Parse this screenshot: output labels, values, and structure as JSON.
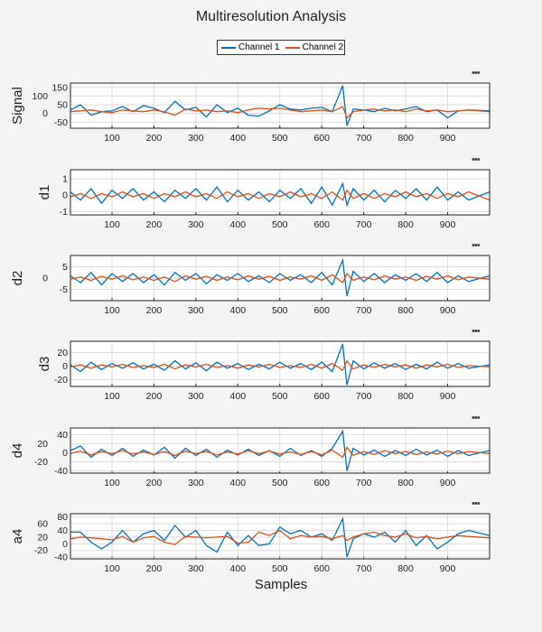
{
  "title": "Multiresolution Analysis",
  "xlabel": "Samples",
  "legend": [
    {
      "name": "Channel 1",
      "color": "#0072bd"
    },
    {
      "name": "Channel 2",
      "color": "#d95319"
    }
  ],
  "toolbar_icon": "more-options-icon",
  "chart_data": [
    {
      "type": "line",
      "ylabel": "Signal",
      "xlim": [
        1,
        1000
      ],
      "ylim": [
        -85,
        175
      ],
      "yticks": [
        -50,
        0,
        50,
        100,
        150
      ],
      "xticks": [
        100,
        200,
        300,
        400,
        500,
        600,
        700,
        800,
        900
      ],
      "grid": true,
      "x": [
        1,
        25,
        50,
        75,
        100,
        125,
        150,
        175,
        200,
        225,
        250,
        275,
        300,
        325,
        350,
        375,
        400,
        425,
        450,
        475,
        500,
        525,
        550,
        575,
        600,
        625,
        650,
        660,
        675,
        700,
        725,
        750,
        775,
        800,
        825,
        850,
        875,
        900,
        925,
        950,
        1000
      ],
      "series": [
        {
          "name": "Channel 1",
          "values": [
            20,
            50,
            -10,
            10,
            15,
            40,
            10,
            45,
            30,
            5,
            70,
            20,
            35,
            -20,
            50,
            5,
            30,
            -10,
            -15,
            15,
            50,
            25,
            20,
            30,
            35,
            10,
            160,
            -70,
            25,
            20,
            10,
            30,
            15,
            25,
            40,
            10,
            20,
            -25,
            15,
            20,
            15
          ]
        },
        {
          "name": "Channel 2",
          "values": [
            10,
            15,
            20,
            10,
            5,
            20,
            15,
            10,
            20,
            10,
            -10,
            25,
            15,
            20,
            10,
            15,
            5,
            20,
            30,
            25,
            30,
            20,
            10,
            15,
            20,
            10,
            40,
            -25,
            10,
            20,
            25,
            15,
            20,
            10,
            25,
            15,
            20,
            10,
            15,
            20,
            10
          ]
        }
      ]
    },
    {
      "type": "line",
      "ylabel": "d1",
      "xlim": [
        1,
        1000
      ],
      "ylim": [
        -1.2,
        1.55
      ],
      "yticks": [
        -1,
        0,
        1
      ],
      "xticks": [
        100,
        200,
        300,
        400,
        500,
        600,
        700,
        800,
        900
      ],
      "grid": true,
      "x": [
        1,
        25,
        50,
        75,
        100,
        125,
        150,
        175,
        200,
        225,
        250,
        275,
        300,
        325,
        350,
        375,
        400,
        425,
        450,
        475,
        500,
        525,
        550,
        575,
        600,
        625,
        650,
        660,
        675,
        700,
        725,
        750,
        775,
        800,
        825,
        850,
        875,
        900,
        925,
        950,
        1000
      ],
      "series": [
        {
          "name": "Channel 1",
          "values": [
            0.2,
            -0.3,
            0.4,
            -0.5,
            0.3,
            -0.2,
            0.4,
            -0.3,
            0.2,
            -0.4,
            0.3,
            -0.2,
            0.4,
            -0.3,
            0.5,
            -0.4,
            0.3,
            -0.3,
            0.2,
            -0.4,
            0.3,
            -0.2,
            0.4,
            -0.5,
            0.5,
            -0.6,
            0.7,
            -0.6,
            0.4,
            -0.3,
            0.3,
            -0.4,
            0.3,
            -0.2,
            0.4,
            -0.3,
            0.5,
            -0.3,
            0.2,
            -0.3,
            0.2
          ]
        },
        {
          "name": "Channel 2",
          "values": [
            -0.1,
            0.1,
            -0.2,
            0.1,
            -0.1,
            0.2,
            -0.1,
            0.1,
            -0.2,
            0.1,
            -0.1,
            0.2,
            -0.1,
            0.1,
            -0.2,
            0.2,
            -0.1,
            0.1,
            -0.2,
            0.1,
            -0.1,
            0.2,
            -0.1,
            0.1,
            -0.2,
            0.2,
            -0.3,
            0.3,
            -0.2,
            0.1,
            -0.2,
            0.1,
            -0.1,
            0.2,
            -0.1,
            0.1,
            -0.2,
            0.1,
            -0.1,
            0.2,
            -0.3
          ]
        }
      ]
    },
    {
      "type": "line",
      "ylabel": "d2",
      "xlim": [
        1,
        1000
      ],
      "ylim": [
        -10,
        10
      ],
      "yticks": [
        -5,
        0,
        5
      ],
      "xticks": [
        100,
        200,
        300,
        400,
        500,
        600,
        700,
        800,
        900
      ],
      "grid": true,
      "x": [
        1,
        25,
        50,
        75,
        100,
        125,
        150,
        175,
        200,
        225,
        250,
        275,
        300,
        325,
        350,
        375,
        400,
        425,
        450,
        475,
        500,
        525,
        550,
        575,
        600,
        625,
        650,
        660,
        675,
        700,
        725,
        750,
        775,
        800,
        825,
        850,
        875,
        900,
        925,
        950,
        1000
      ],
      "series": [
        {
          "name": "Channel 1",
          "values": [
            1,
            -2,
            2.5,
            -3,
            2,
            -1.5,
            2,
            -2,
            1.5,
            -3,
            2.5,
            -1,
            2,
            -2.5,
            1.5,
            -1,
            2,
            -1.5,
            1,
            -2,
            2,
            -1,
            1.5,
            -2,
            2.5,
            -3,
            8,
            -8,
            3,
            -1.5,
            2,
            -2,
            1.5,
            -1,
            2,
            -1.5,
            2.5,
            -2,
            1,
            -1.5,
            1
          ]
        },
        {
          "name": "Channel 2",
          "values": [
            -0.5,
            0.5,
            -1,
            0.8,
            -0.5,
            1,
            -0.8,
            0.5,
            -1,
            0.5,
            -1.5,
            1,
            -0.5,
            0.8,
            -1,
            0.5,
            -0.8,
            1,
            -0.5,
            0.8,
            -1,
            0.5,
            -0.5,
            1,
            -1,
            1.5,
            -2,
            2,
            -1,
            0.5,
            -0.8,
            1,
            -0.5,
            0.5,
            -1,
            0.8,
            -0.5,
            1,
            -0.8,
            0.5,
            -0.5
          ]
        }
      ]
    },
    {
      "type": "line",
      "ylabel": "d3",
      "xlim": [
        1,
        1000
      ],
      "ylim": [
        -30,
        37
      ],
      "yticks": [
        -20,
        0,
        20
      ],
      "xticks": [
        100,
        200,
        300,
        400,
        500,
        600,
        700,
        800,
        900
      ],
      "grid": true,
      "x": [
        1,
        25,
        50,
        75,
        100,
        125,
        150,
        175,
        200,
        225,
        250,
        275,
        300,
        325,
        350,
        375,
        400,
        425,
        450,
        475,
        500,
        525,
        550,
        575,
        600,
        625,
        650,
        660,
        675,
        700,
        725,
        750,
        775,
        800,
        825,
        850,
        875,
        900,
        925,
        950,
        1000
      ],
      "series": [
        {
          "name": "Channel 1",
          "values": [
            2,
            -8,
            6,
            -5,
            4,
            -3,
            5,
            -4,
            3,
            -6,
            8,
            -4,
            5,
            -7,
            6,
            -3,
            4,
            -5,
            3,
            -4,
            6,
            -3,
            4,
            -5,
            6,
            -8,
            33,
            -28,
            8,
            -4,
            5,
            -3,
            4,
            -5,
            3,
            -4,
            6,
            -3,
            4,
            -3,
            2
          ]
        },
        {
          "name": "Channel 2",
          "values": [
            -1,
            2,
            -3,
            2,
            -1,
            3,
            -2,
            1,
            -2,
            3,
            -4,
            2,
            -1,
            3,
            -2,
            1,
            -3,
            2,
            -1,
            3,
            -2,
            1,
            -2,
            3,
            -3,
            4,
            -6,
            8,
            -4,
            2,
            -2,
            3,
            -1,
            2,
            -3,
            2,
            -1,
            3,
            -2,
            1,
            -1
          ]
        }
      ]
    },
    {
      "type": "line",
      "ylabel": "d4",
      "xlim": [
        1,
        1000
      ],
      "ylim": [
        -45,
        55
      ],
      "yticks": [
        -40,
        -20,
        0,
        20,
        40
      ],
      "xticks": [
        100,
        200,
        300,
        400,
        500,
        600,
        700,
        800,
        900
      ],
      "grid": true,
      "x": [
        1,
        25,
        50,
        75,
        100,
        125,
        150,
        175,
        200,
        225,
        250,
        275,
        300,
        325,
        350,
        375,
        400,
        425,
        450,
        475,
        500,
        525,
        550,
        575,
        600,
        625,
        650,
        660,
        675,
        700,
        725,
        750,
        775,
        800,
        825,
        850,
        875,
        900,
        925,
        950,
        1000
      ],
      "series": [
        {
          "name": "Channel 1",
          "values": [
            5,
            15,
            -10,
            8,
            -6,
            10,
            -8,
            6,
            -5,
            12,
            -12,
            10,
            -6,
            8,
            -10,
            6,
            -5,
            8,
            -6,
            5,
            -8,
            10,
            -6,
            5,
            -8,
            10,
            48,
            -40,
            10,
            -5,
            6,
            -8,
            5,
            -6,
            8,
            -5,
            6,
            -8,
            5,
            -6,
            5
          ]
        },
        {
          "name": "Channel 2",
          "values": [
            -2,
            4,
            -5,
            3,
            -2,
            5,
            -3,
            2,
            -4,
            3,
            -6,
            4,
            -2,
            3,
            -5,
            2,
            -3,
            5,
            -2,
            4,
            -3,
            2,
            -4,
            3,
            -5,
            6,
            -10,
            12,
            -6,
            3,
            -4,
            5,
            -2,
            3,
            -4,
            2,
            -3,
            4,
            -2,
            3,
            -2
          ]
        }
      ]
    },
    {
      "type": "line",
      "ylabel": "a4",
      "xlim": [
        1,
        1000
      ],
      "ylim": [
        -45,
        90
      ],
      "yticks": [
        -40,
        -20,
        0,
        20,
        40,
        60,
        80
      ],
      "xticks": [
        100,
        200,
        300,
        400,
        500,
        600,
        700,
        800,
        900
      ],
      "grid": true,
      "x": [
        1,
        25,
        50,
        75,
        100,
        125,
        150,
        175,
        200,
        225,
        250,
        275,
        300,
        325,
        350,
        375,
        400,
        425,
        450,
        475,
        500,
        525,
        550,
        575,
        600,
        625,
        650,
        660,
        675,
        700,
        725,
        750,
        775,
        800,
        825,
        850,
        875,
        900,
        925,
        950,
        1000
      ],
      "series": [
        {
          "name": "Channel 1",
          "values": [
            35,
            35,
            5,
            -15,
            5,
            40,
            5,
            30,
            40,
            10,
            55,
            20,
            40,
            -5,
            -25,
            35,
            -5,
            25,
            -5,
            0,
            50,
            30,
            40,
            20,
            30,
            10,
            75,
            -40,
            15,
            30,
            20,
            35,
            5,
            40,
            -5,
            25,
            -15,
            5,
            30,
            40,
            25
          ]
        },
        {
          "name": "Channel 2",
          "values": [
            15,
            20,
            18,
            15,
            12,
            22,
            5,
            18,
            22,
            5,
            -2,
            22,
            20,
            18,
            20,
            22,
            2,
            5,
            35,
            25,
            40,
            15,
            25,
            20,
            22,
            15,
            25,
            10,
            20,
            30,
            35,
            25,
            20,
            30,
            18,
            22,
            15,
            20,
            25,
            22,
            18
          ]
        }
      ]
    }
  ]
}
